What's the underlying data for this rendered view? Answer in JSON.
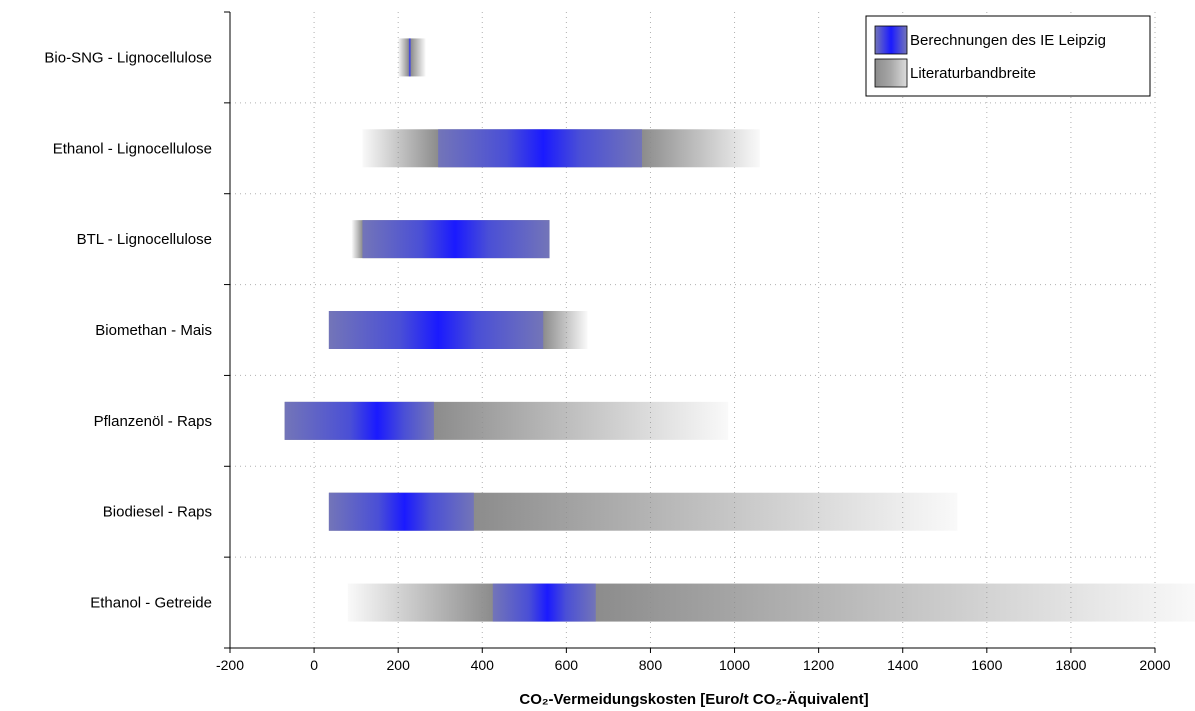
{
  "chart_data": {
    "type": "bar",
    "orientation": "horizontal",
    "title": "",
    "xlabel": "CO₂-Vermeidungskosten [Euro/t CO₂-Äquivalent]",
    "ylabel": "",
    "xlim": [
      -200,
      2000
    ],
    "xticks": [
      "-200",
      "0",
      "200",
      "400",
      "600",
      "800",
      "1000",
      "1200",
      "1400",
      "1600",
      "1800",
      "2000"
    ],
    "grid": true,
    "legend_position": "top-right",
    "categories": [
      "Bio-SNG - Lignocellulose",
      "Ethanol - Lignocellulose",
      "BTL - Lignocellulose",
      "Biomethan - Mais",
      "Pflanzenöl - Raps",
      "Biodiesel - Raps",
      "Ethanol - Getreide"
    ],
    "series": [
      {
        "name": "Berechnungen des IE Leipzig",
        "color": "#1a1aff",
        "ranges": [
          [
            225,
            230
          ],
          [
            295,
            780
          ],
          [
            115,
            560
          ],
          [
            35,
            545
          ],
          [
            -70,
            285
          ],
          [
            35,
            380
          ],
          [
            425,
            670
          ]
        ],
        "centers": [
          228,
          545,
          335,
          295,
          150,
          215,
          555
        ]
      },
      {
        "name": "Literaturbandbreite",
        "color": "#8c8c8c",
        "ranges": [
          [
            200,
            265
          ],
          [
            115,
            1060
          ],
          [
            90,
            560
          ],
          [
            35,
            650
          ],
          [
            -70,
            985
          ],
          [
            35,
            1530
          ],
          [
            80,
            2100
          ]
        ]
      }
    ]
  }
}
